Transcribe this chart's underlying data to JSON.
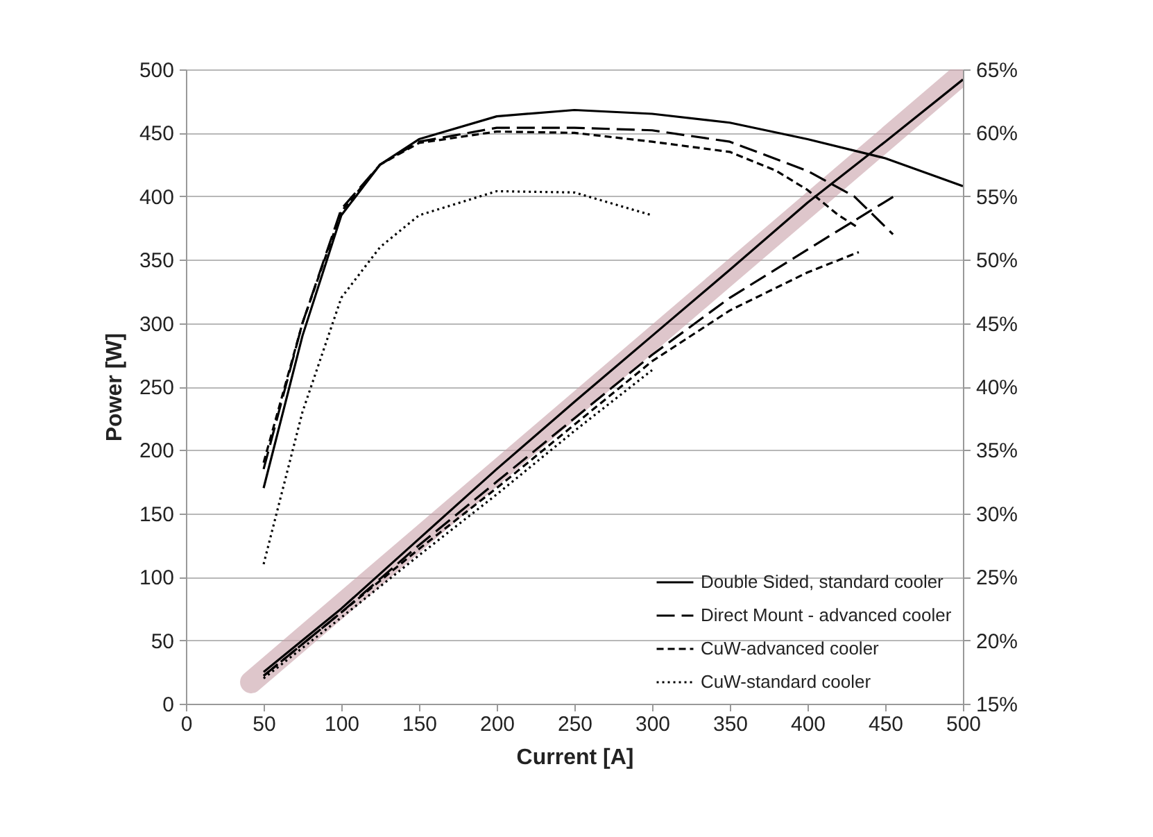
{
  "chart_data": {
    "type": "line",
    "xlabel": "Current [A]",
    "ylabel": "Power [W]",
    "xlim": [
      0,
      500
    ],
    "xticks": [
      0,
      50,
      100,
      150,
      200,
      250,
      300,
      350,
      400,
      450,
      500
    ],
    "ylim": [
      0,
      500
    ],
    "yticks": [
      0,
      50,
      100,
      150,
      200,
      250,
      300,
      350,
      400,
      450,
      500
    ],
    "y2lim": [
      15,
      65
    ],
    "y2ticks": [
      {
        "value": 15,
        "label": "15%"
      },
      {
        "value": 20,
        "label": "20%"
      },
      {
        "value": 25,
        "label": "25%"
      },
      {
        "value": 30,
        "label": "30%"
      },
      {
        "value": 35,
        "label": "35%"
      },
      {
        "value": 40,
        "label": "40%"
      },
      {
        "value": 45,
        "label": "45%"
      },
      {
        "value": 50,
        "label": "50%"
      },
      {
        "value": 55,
        "label": "55%"
      },
      {
        "value": 60,
        "label": "60%"
      },
      {
        "value": 65,
        "label": "65%"
      }
    ],
    "grid": "y",
    "legend": "bottom right",
    "series": [
      {
        "color": "#c8a0a8",
        "x": [
          42,
          500
        ],
        "values": [
          17,
          497
        ]
      },
      {
        "name": "Double Sided, standard cooler",
        "color": "#000000",
        "line_style": "solid",
        "x": [
          50,
          100,
          150,
          200,
          250,
          300,
          350,
          400,
          450,
          500
        ],
        "values": [
          25,
          75,
          130,
          185,
          238,
          290,
          342,
          395,
          443,
          492
        ]
      },
      {
        "name": "Direct Mount - advanced cooler",
        "color": "#000000",
        "line_style": "dashed",
        "x": [
          50,
          100,
          150,
          200,
          250,
          300,
          350,
          400,
          457
        ],
        "values": [
          22,
          72,
          125,
          175,
          225,
          275,
          320,
          358,
          401
        ]
      },
      {
        "name": "CuW-advanced cooler",
        "color": "#000000",
        "line_style": "dashed",
        "x": [
          50,
          100,
          150,
          200,
          250,
          300,
          350,
          400,
          433
        ],
        "values": [
          22,
          72,
          122,
          170,
          220,
          270,
          310,
          340,
          356
        ]
      },
      {
        "name": "CuW-standard cooler",
        "color": "#000000",
        "line_style": "dotted",
        "x": [
          50,
          100,
          150,
          200,
          250,
          300
        ],
        "values": [
          20,
          68,
          117,
          165,
          215,
          263
        ]
      },
      {
        "color": "#000000",
        "line_style": "solid",
        "axis": "y2",
        "x": [
          50,
          75,
          100,
          125,
          150,
          200,
          250,
          300,
          350,
          400,
          450,
          500
        ],
        "values": [
          32,
          44,
          53.5,
          57.5,
          59.5,
          61.3,
          61.8,
          61.5,
          60.8,
          59.5,
          58,
          55.8
        ]
      },
      {
        "color": "#000000",
        "line_style": "dashed",
        "axis": "y2",
        "x": [
          50,
          75,
          100,
          125,
          150,
          200,
          250,
          300,
          350,
          400,
          430,
          455
        ],
        "values": [
          33.5,
          45,
          54,
          57.5,
          59.3,
          60.4,
          60.4,
          60.2,
          59.3,
          57,
          55,
          52
        ]
      },
      {
        "color": "#000000",
        "line_style": "dashed",
        "axis": "y2",
        "x": [
          50,
          75,
          100,
          125,
          150,
          200,
          250,
          300,
          350,
          380,
          400,
          420,
          433
        ],
        "values": [
          34,
          45,
          53.8,
          57.5,
          59.2,
          60.1,
          60,
          59.3,
          58.5,
          57,
          55.5,
          53.5,
          52.5
        ]
      },
      {
        "color": "#000000",
        "line_style": "dotted",
        "axis": "y2",
        "x": [
          50,
          75,
          100,
          125,
          150,
          200,
          250,
          300
        ],
        "values": [
          26,
          38,
          47,
          51,
          53.5,
          55.4,
          55.3,
          53.5
        ]
      }
    ]
  }
}
